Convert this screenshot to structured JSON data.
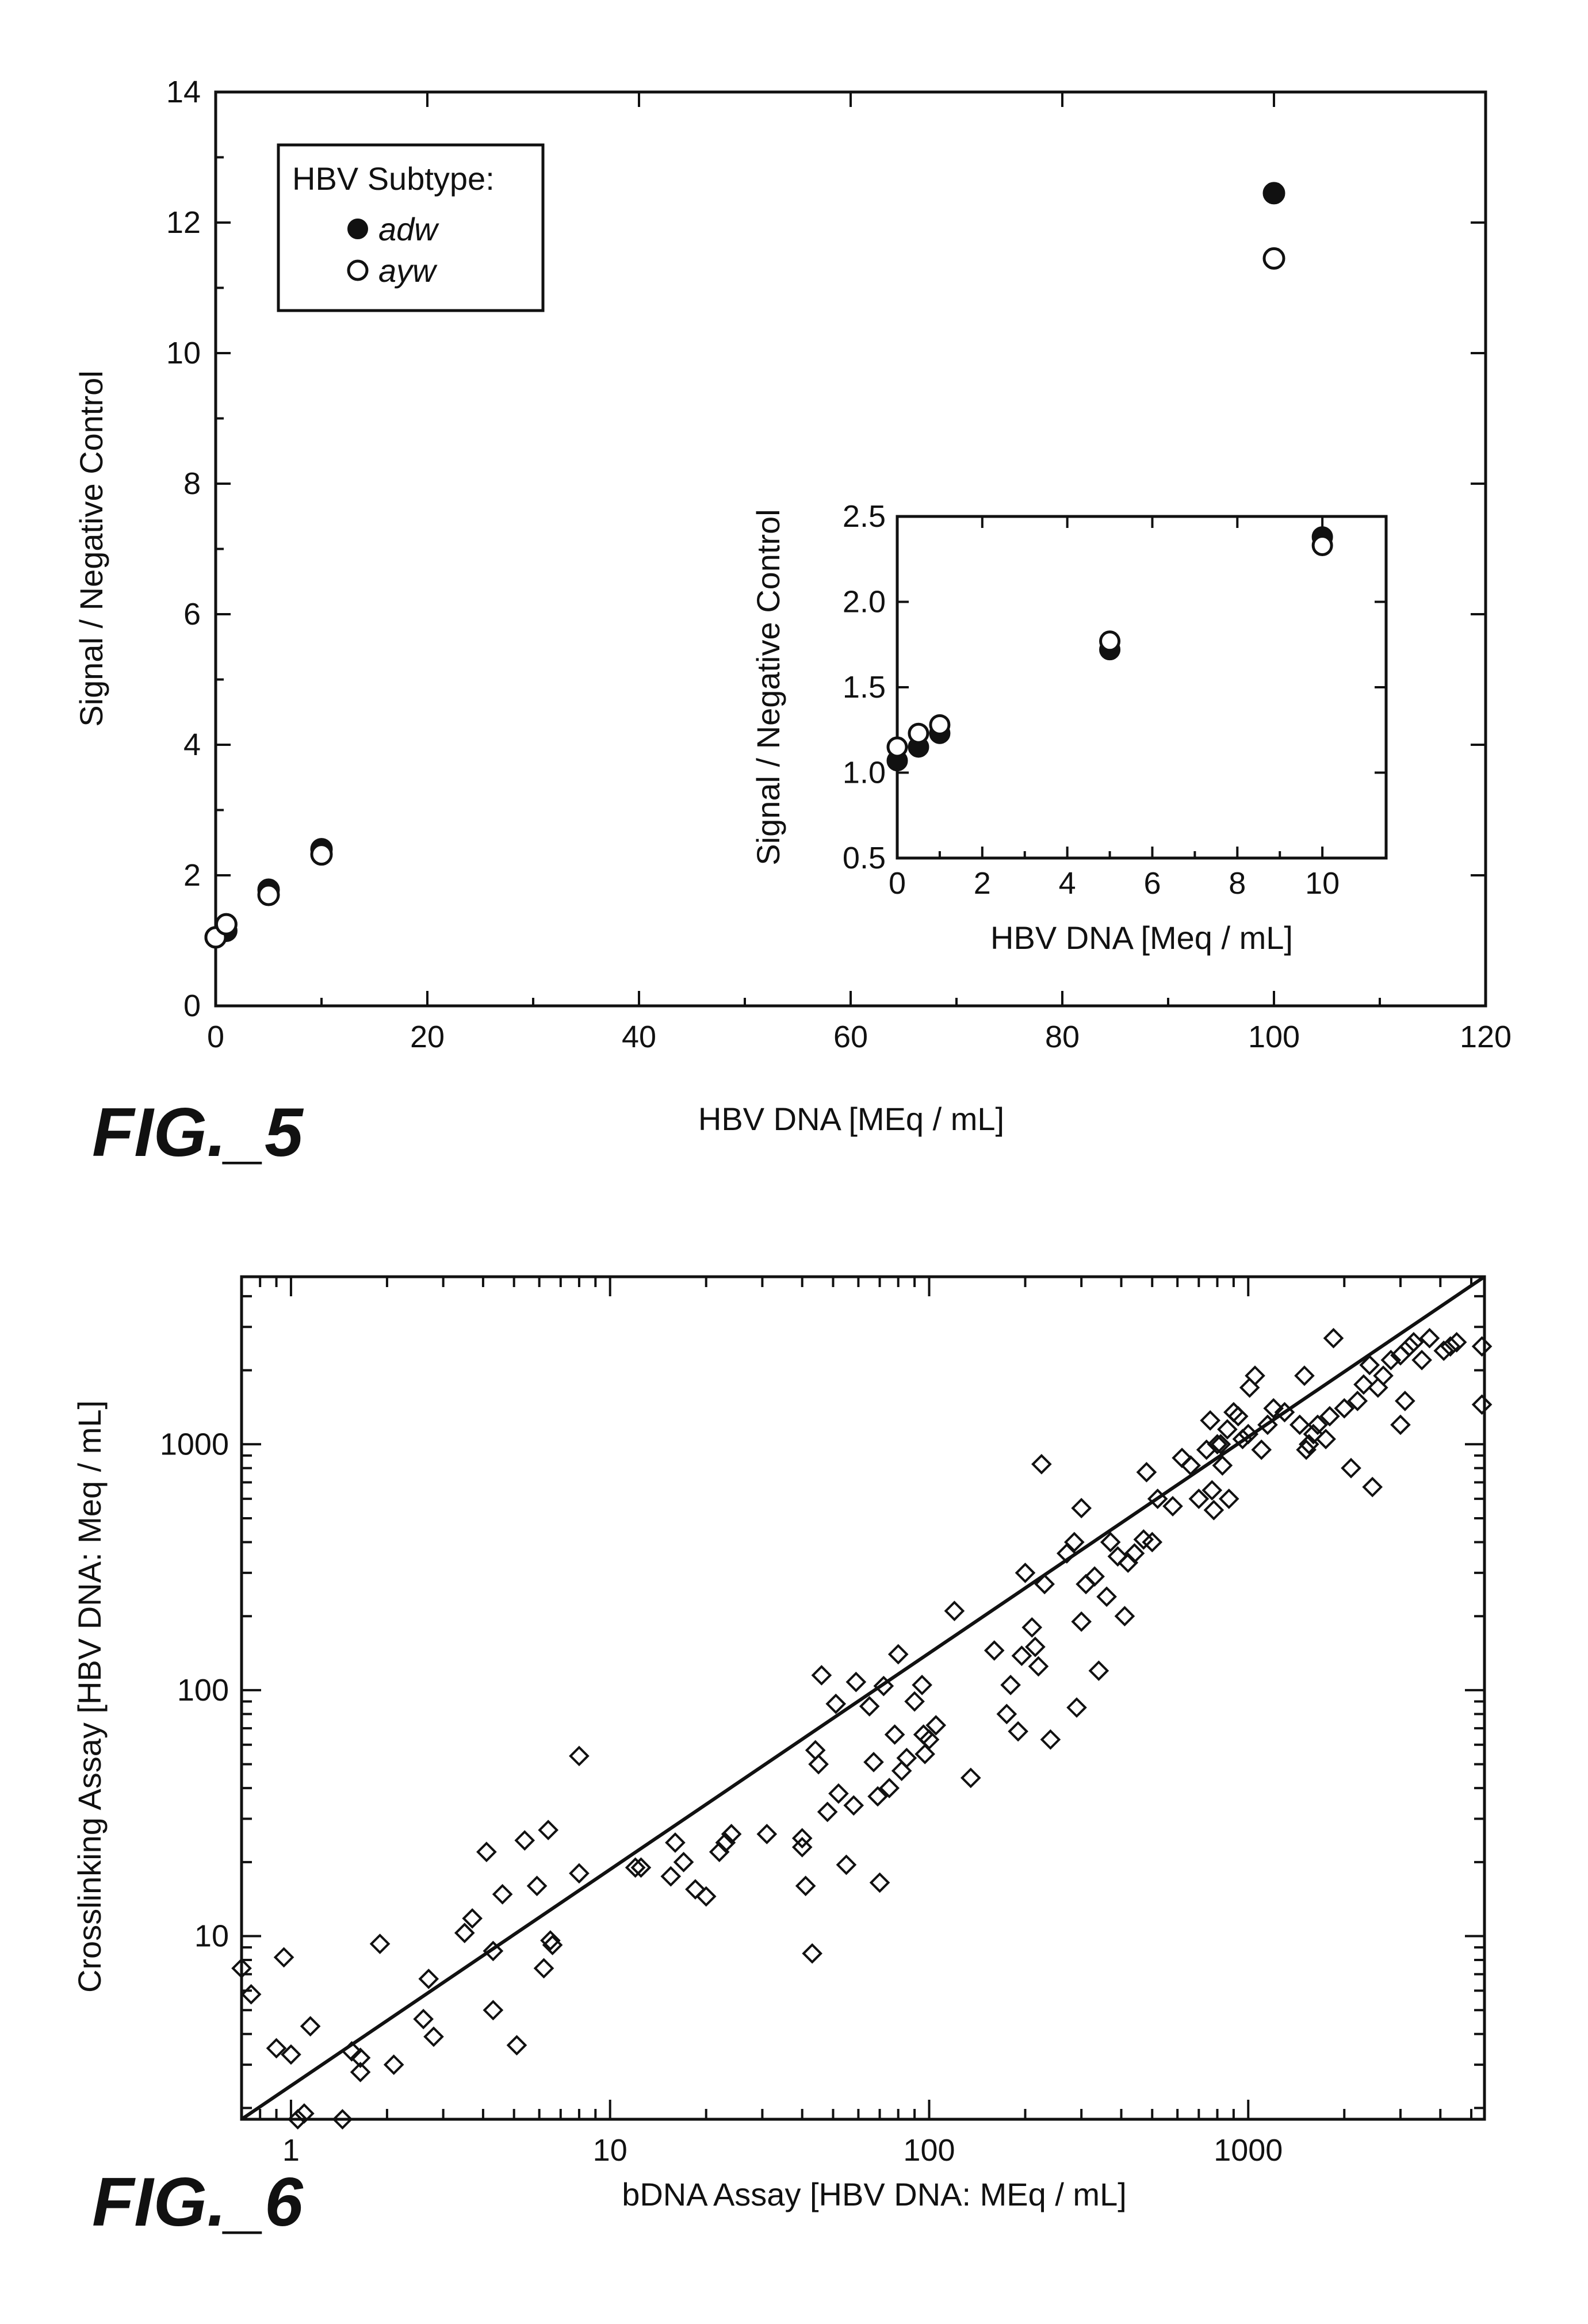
{
  "figures": [
    {
      "label": "FIG._5"
    },
    {
      "label": "FIG._6"
    }
  ],
  "chart_data": [
    {
      "type": "scatter",
      "xlabel": "HBV DNA [MEq / mL]",
      "ylabel": "Signal / Negative Control",
      "xlim": [
        0,
        120
      ],
      "ylim": [
        0,
        14
      ],
      "xticks": [
        0,
        20,
        40,
        60,
        80,
        100,
        120
      ],
      "yticks": [
        0,
        2,
        4,
        6,
        8,
        10,
        12,
        14
      ],
      "legend": {
        "title": "HBV Subtype:",
        "placement": "top-left",
        "entries": [
          {
            "name": "adw",
            "marker": "filled-circle"
          },
          {
            "name": "ayw",
            "marker": "open-circle"
          }
        ]
      },
      "series": [
        {
          "name": "adw",
          "marker": "filled-circle",
          "points": [
            [
              0,
              1.05
            ],
            [
              1,
              1.15
            ],
            [
              5,
              1.78
            ],
            [
              10,
              2.4
            ],
            [
              100,
              12.45
            ]
          ]
        },
        {
          "name": "ayw",
          "marker": "open-circle",
          "points": [
            [
              0,
              1.05
            ],
            [
              1,
              1.25
            ],
            [
              5,
              1.7
            ],
            [
              10,
              2.32
            ],
            [
              100,
              11.45
            ]
          ]
        }
      ],
      "inset": {
        "type": "scatter",
        "xlabel": "HBV DNA [Meq / mL]",
        "ylabel": "Signal / Negative Control",
        "xlim": [
          0,
          11.5
        ],
        "ylim": [
          0.5,
          2.5
        ],
        "xticks": [
          0,
          2,
          4,
          6,
          8,
          10
        ],
        "yticks": [
          0.5,
          1.0,
          1.5,
          2.0,
          2.5
        ],
        "ytick_labels": [
          "0.5",
          "1.0",
          "1.5",
          "2.0",
          "2.5"
        ],
        "series": [
          {
            "name": "adw",
            "marker": "filled-circle",
            "points": [
              [
                0,
                1.07
              ],
              [
                0.5,
                1.15
              ],
              [
                1,
                1.23
              ],
              [
                5,
                1.72
              ],
              [
                10,
                2.38
              ]
            ]
          },
          {
            "name": "ayw",
            "marker": "open-circle",
            "points": [
              [
                0,
                1.15
              ],
              [
                0.5,
                1.23
              ],
              [
                1,
                1.28
              ],
              [
                5,
                1.77
              ],
              [
                10,
                2.33
              ]
            ]
          }
        ]
      }
    },
    {
      "type": "scatter",
      "xlabel": "bDNA Assay [HBV DNA: MEq / mL]",
      "ylabel": "Crosslinking Assay [HBV DNA: Meq / mL]",
      "xscale": "log",
      "yscale": "log",
      "xlim": [
        0.7,
        5500
      ],
      "ylim": [
        1.8,
        4800
      ],
      "xtick_labels": [
        "1",
        "10",
        "100",
        "1000"
      ],
      "xticks": [
        1,
        10,
        100,
        1000
      ],
      "ytick_labels": [
        "10",
        "100",
        "1000"
      ],
      "yticks": [
        10,
        100,
        1000
      ],
      "grid": false,
      "marker": "open-diamond",
      "fit_line": {
        "x": [
          0.7,
          5500
        ],
        "y": [
          1.8,
          4800
        ]
      },
      "points": [
        [
          0.7,
          7.4
        ],
        [
          0.75,
          5.8
        ],
        [
          0.9,
          3.5
        ],
        [
          0.95,
          8.2
        ],
        [
          1.0,
          3.3
        ],
        [
          1.1,
          1.9
        ],
        [
          1.15,
          4.3
        ],
        [
          1.05,
          1.8
        ],
        [
          1.45,
          1.8
        ],
        [
          1.55,
          3.4
        ],
        [
          1.65,
          2.8
        ],
        [
          1.65,
          3.2
        ],
        [
          1.9,
          9.3
        ],
        [
          2.1,
          3.0
        ],
        [
          2.6,
          4.6
        ],
        [
          2.7,
          6.7
        ],
        [
          2.8,
          3.9
        ],
        [
          3.5,
          10.3
        ],
        [
          3.7,
          11.8
        ],
        [
          4.1,
          22.0
        ],
        [
          4.3,
          8.7
        ],
        [
          4.3,
          5.0
        ],
        [
          4.6,
          14.8
        ],
        [
          5.1,
          3.6
        ],
        [
          5.4,
          24.5
        ],
        [
          5.9,
          16.0
        ],
        [
          6.2,
          7.4
        ],
        [
          6.4,
          27.0
        ],
        [
          6.5,
          9.6
        ],
        [
          6.6,
          9.2
        ],
        [
          8.0,
          18.0
        ],
        [
          8.0,
          54.0
        ],
        [
          12.0,
          19.0
        ],
        [
          12.5,
          19.0
        ],
        [
          15.5,
          17.5
        ],
        [
          16.0,
          24.0
        ],
        [
          17.0,
          20.0
        ],
        [
          18.5,
          15.5
        ],
        [
          20.0,
          14.5
        ],
        [
          22.0,
          22.0
        ],
        [
          23.0,
          24.0
        ],
        [
          24.0,
          26.0
        ],
        [
          31.0,
          26.0
        ],
        [
          40.0,
          23.0
        ],
        [
          40.0,
          25.0
        ],
        [
          41.0,
          16.0
        ],
        [
          43.0,
          8.5
        ],
        [
          44.0,
          57.0
        ],
        [
          45.0,
          50.0
        ],
        [
          46.0,
          115.0
        ],
        [
          48.0,
          32.0
        ],
        [
          51.0,
          88.0
        ],
        [
          52.0,
          38.0
        ],
        [
          55.0,
          19.5
        ],
        [
          58.0,
          34.0
        ],
        [
          59.0,
          108.0
        ],
        [
          65.0,
          86.0
        ],
        [
          67.0,
          51.0
        ],
        [
          69.0,
          37.0
        ],
        [
          70.0,
          16.5
        ],
        [
          72.0,
          104.0
        ],
        [
          75.0,
          40.0
        ],
        [
          78.0,
          66.0
        ],
        [
          80.0,
          140.0
        ],
        [
          82.0,
          47.0
        ],
        [
          85.0,
          53.0
        ],
        [
          90.0,
          90.0
        ],
        [
          95.0,
          105.0
        ],
        [
          96.0,
          66.0
        ],
        [
          97.0,
          55.0
        ],
        [
          100.0,
          63.0
        ],
        [
          105.0,
          72.0
        ],
        [
          120.0,
          210.0
        ],
        [
          135.0,
          44.0
        ],
        [
          160.0,
          145.0
        ],
        [
          175.0,
          80.0
        ],
        [
          180.0,
          105.0
        ],
        [
          190.0,
          68.0
        ],
        [
          195.0,
          138.0
        ],
        [
          200.0,
          300.0
        ],
        [
          210.0,
          180.0
        ],
        [
          215.0,
          150.0
        ],
        [
          220.0,
          125.0
        ],
        [
          225.0,
          830.0
        ],
        [
          230.0,
          270.0
        ],
        [
          240.0,
          63.0
        ],
        [
          270.0,
          360.0
        ],
        [
          285.0,
          400.0
        ],
        [
          290.0,
          85.0
        ],
        [
          300.0,
          550.0
        ],
        [
          300.0,
          190.0
        ],
        [
          310.0,
          270.0
        ],
        [
          330.0,
          290.0
        ],
        [
          340.0,
          120.0
        ],
        [
          360.0,
          240.0
        ],
        [
          370.0,
          400.0
        ],
        [
          390.0,
          350.0
        ],
        [
          410.0,
          200.0
        ],
        [
          420.0,
          330.0
        ],
        [
          440.0,
          360.0
        ],
        [
          470.0,
          410.0
        ],
        [
          480.0,
          770.0
        ],
        [
          500.0,
          400.0
        ],
        [
          520.0,
          600.0
        ],
        [
          580.0,
          560.0
        ],
        [
          620.0,
          880.0
        ],
        [
          660.0,
          820.0
        ],
        [
          700.0,
          600.0
        ],
        [
          740.0,
          950.0
        ],
        [
          760.0,
          1250.0
        ],
        [
          770.0,
          650.0
        ],
        [
          780.0,
          540.0
        ],
        [
          800.0,
          1000.0
        ],
        [
          820.0,
          1000.0
        ],
        [
          830.0,
          820.0
        ],
        [
          860.0,
          1150.0
        ],
        [
          870.0,
          600.0
        ],
        [
          900.0,
          1350.0
        ],
        [
          930.0,
          1300.0
        ],
        [
          960.0,
          1050.0
        ],
        [
          1000.0,
          1100.0
        ],
        [
          1010.0,
          1700.0
        ],
        [
          1050.0,
          1900.0
        ],
        [
          1100.0,
          950.0
        ],
        [
          1150.0,
          1200.0
        ],
        [
          1200.0,
          1400.0
        ],
        [
          1300.0,
          1350.0
        ],
        [
          1450.0,
          1200.0
        ],
        [
          1500.0,
          1900.0
        ],
        [
          1520.0,
          950.0
        ],
        [
          1550.0,
          1000.0
        ],
        [
          1600.0,
          1100.0
        ],
        [
          1650.0,
          1200.0
        ],
        [
          1750.0,
          1050.0
        ],
        [
          1800.0,
          1300.0
        ],
        [
          1850.0,
          2700.0
        ],
        [
          2000.0,
          1400.0
        ],
        [
          2100.0,
          800.0
        ],
        [
          2200.0,
          1500.0
        ],
        [
          2300.0,
          1750.0
        ],
        [
          2400.0,
          2100.0
        ],
        [
          2450.0,
          670.0
        ],
        [
          2550.0,
          1700.0
        ],
        [
          2650.0,
          1900.0
        ],
        [
          2800.0,
          2200.0
        ],
        [
          3000.0,
          2300.0
        ],
        [
          3000.0,
          1200.0
        ],
        [
          3100.0,
          1500.0
        ],
        [
          3200.0,
          2500.0
        ],
        [
          3300.0,
          2600.0
        ],
        [
          3500.0,
          2200.0
        ],
        [
          3700.0,
          2700.0
        ],
        [
          4100.0,
          2400.0
        ],
        [
          4300.0,
          2500.0
        ],
        [
          4500.0,
          2600.0
        ],
        [
          5400.0,
          2500.0
        ],
        [
          5400.0,
          1450.0
        ]
      ]
    }
  ]
}
